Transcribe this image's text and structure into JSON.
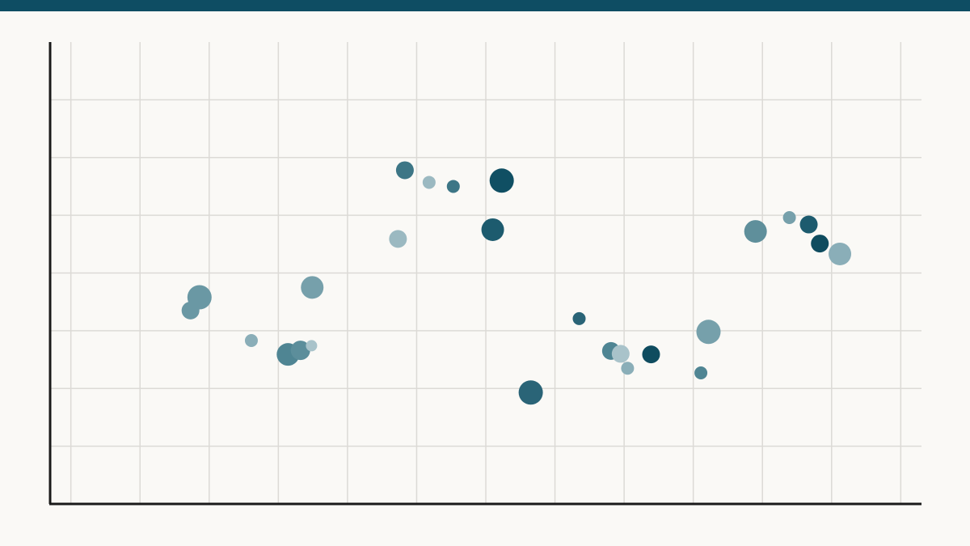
{
  "chart_data": {
    "type": "scatter",
    "x": [
      1.73,
      1.86,
      2.61,
      3.14,
      3.32,
      3.48,
      3.49,
      4.73,
      4.83,
      5.18,
      5.53,
      6.1,
      6.23,
      6.65,
      7.35,
      7.81,
      7.95,
      8.05,
      8.39,
      9.11,
      9.22,
      9.9,
      10.39,
      10.67,
      10.83,
      11.12
    ],
    "values": [
      3.35,
      3.58,
      2.83,
      2.59,
      2.66,
      2.74,
      3.75,
      4.59,
      5.78,
      5.57,
      5.5,
      4.75,
      5.6,
      1.93,
      3.21,
      2.65,
      2.6,
      2.35,
      2.59,
      2.27,
      2.98,
      4.72,
      4.96,
      4.84,
      4.51,
      4.33
    ],
    "sizes": [
      11,
      15,
      8,
      14,
      12,
      7,
      14,
      11,
      11,
      8,
      8,
      14,
      15,
      15,
      8,
      11,
      11,
      8,
      11,
      8,
      15,
      14,
      8,
      11,
      11,
      14
    ],
    "colors": [
      "#6a98a4",
      "#6a98a4",
      "#8aaeb8",
      "#4f8593",
      "#5c8e9b",
      "#a9c3ca",
      "#76a0ab",
      "#9bb9c1",
      "#3d7686",
      "#9bb9c1",
      "#3d7686",
      "#1d5b6e",
      "#104f63",
      "#2a6477",
      "#2a6477",
      "#4f8593",
      "#a9c3ca",
      "#8aaeb8",
      "#0f4c5f",
      "#4f8593",
      "#76a0ab",
      "#5f8f9b",
      "#76a0ab",
      "#1d5b6e",
      "#0f4c5f",
      "#8aaeb8"
    ],
    "xlim": [
      -0.3,
      12.3
    ],
    "ylim": [
      0,
      8
    ],
    "xticks": [
      0,
      1,
      2,
      3,
      4,
      5,
      6,
      7,
      8,
      9,
      10,
      11,
      12
    ],
    "yticks": [
      1,
      2,
      3,
      4,
      5,
      6,
      7
    ],
    "grid": true
  }
}
